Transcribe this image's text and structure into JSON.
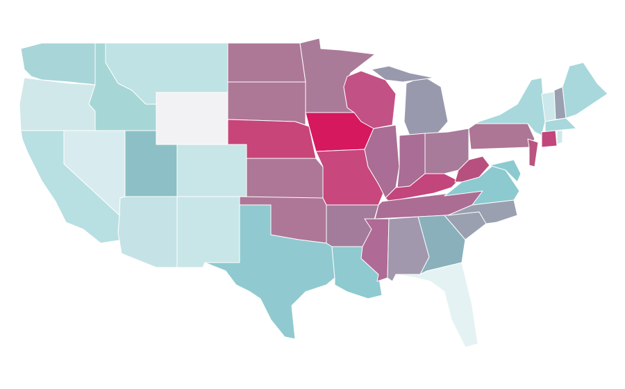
{
  "regions": {
    "colors": [
      "#a8d5d8",
      "#d0e8ea",
      "#a7d6d6",
      "#bfe2e4",
      "#f2f2f4",
      "#d8ecef",
      "#b8dfe1",
      "#8cc0c6",
      "#c8e5e7",
      "#c5e3e6",
      "#c8e6e7",
      "#ad7796",
      "#ad7796",
      "#c84579",
      "#ae7797",
      "#ae7797",
      "#90cad0",
      "#aa7b98",
      "#d6185f",
      "#c8477c",
      "#a37c9b",
      "#8ecacf",
      "#c25285",
      "#aa6d95",
      "#9999ae",
      "#9999ae",
      "#aa6d95",
      "#a87b9a",
      "#c2457c",
      "#ac6d95",
      "#b06a96",
      "#a298ad",
      "#8ab0bc",
      "#e4f2f3",
      "#9aa0b0",
      "#9aa0b0",
      "#8ccad0",
      "#b7507f",
      "#ad7695",
      "#a8d8dc",
      "#b9557f",
      "#8ccad0",
      "#cde8ea",
      "#9aa0b0",
      "#a8d8dc",
      "#a8d8dc",
      "#c0467b",
      "#d0e8ea"
    ]
  }
}
